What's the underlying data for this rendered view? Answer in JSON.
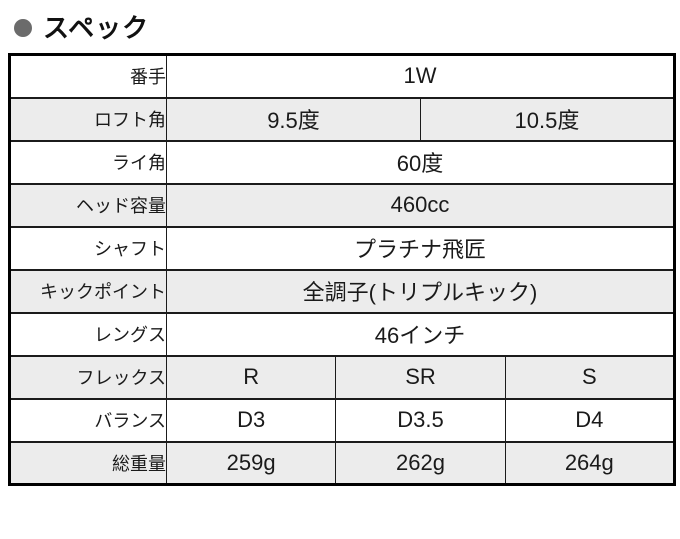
{
  "title": {
    "text": "スペック",
    "bullet_icon": "circle-bullet",
    "bullet_color": "#6b6b6b"
  },
  "spec_table": {
    "shaded_row_color": "#ececec",
    "rows": [
      {
        "label": "番手",
        "shaded": false,
        "values": [
          "1W"
        ]
      },
      {
        "label": "ロフト角",
        "shaded": true,
        "values": [
          "9.5度",
          "10.5度"
        ]
      },
      {
        "label": "ライ角",
        "shaded": false,
        "values": [
          "60度"
        ]
      },
      {
        "label": "ヘッド容量",
        "shaded": true,
        "values": [
          "460cc"
        ]
      },
      {
        "label": "シャフト",
        "shaded": false,
        "values": [
          "プラチナ飛匠"
        ]
      },
      {
        "label": "キックポイント",
        "shaded": true,
        "values": [
          "全調子(トリプルキック)"
        ]
      },
      {
        "label": "レングス",
        "shaded": false,
        "values": [
          "46インチ"
        ]
      },
      {
        "label": "フレックス",
        "shaded": true,
        "values": [
          "R",
          "SR",
          "S"
        ]
      },
      {
        "label": "バランス",
        "shaded": false,
        "values": [
          "D3",
          "D3.5",
          "D4"
        ]
      },
      {
        "label": "総重量",
        "shaded": true,
        "values": [
          "259g",
          "262g",
          "264g"
        ]
      }
    ]
  }
}
